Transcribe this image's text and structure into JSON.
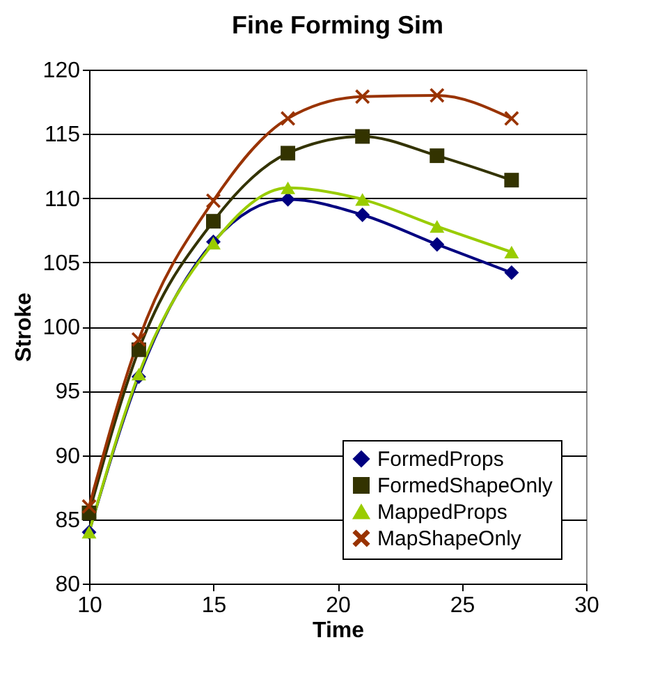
{
  "chart_data": {
    "type": "line",
    "title": "Fine Forming Sim",
    "xlabel": "Time",
    "ylabel": "Stroke",
    "x": [
      10,
      12,
      15,
      18,
      21,
      24,
      27
    ],
    "series": [
      {
        "name": "FormedProps",
        "color": "#000080",
        "marker": "diamond",
        "values": [
          84,
          96.1,
          106.6,
          109.9,
          108.7,
          106.4,
          104.2
        ]
      },
      {
        "name": "FormedShapeOnly",
        "color": "#333300",
        "marker": "square",
        "values": [
          85.5,
          98.2,
          108.2,
          113.5,
          114.8,
          113.3,
          111.4
        ]
      },
      {
        "name": "MappedProps",
        "color": "#99cc00",
        "marker": "triangle",
        "values": [
          84,
          96.3,
          106.5,
          110.8,
          109.9,
          107.8,
          105.8
        ]
      },
      {
        "name": "MapShapeOnly",
        "color": "#993300",
        "marker": "cross",
        "values": [
          86,
          99.0,
          109.8,
          116.2,
          117.9,
          118.0,
          116.2
        ]
      }
    ],
    "xlim": [
      10,
      30
    ],
    "xticks": [
      10,
      15,
      20,
      25,
      30
    ],
    "ylim": [
      80,
      120
    ],
    "yticks": [
      80,
      85,
      90,
      95,
      100,
      105,
      110,
      115,
      120
    ],
    "grid": "y",
    "legend": "bottom right",
    "line_style": "solid"
  }
}
